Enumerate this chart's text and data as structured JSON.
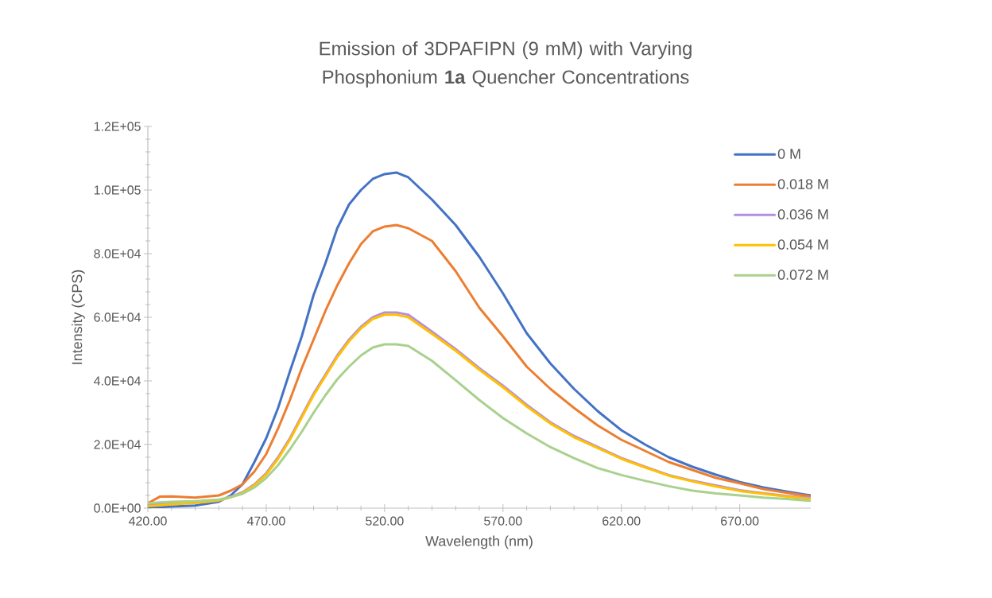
{
  "chart_data": {
    "type": "line",
    "title": "Emission of 3DPAFIPN (9 mM) with Varying Phosphonium **1a** Quencher Concentrations",
    "xlabel": "Wavelength (nm)",
    "ylabel": "Intensity (CPS)",
    "x": [
      420,
      425,
      430,
      440,
      450,
      455,
      460,
      465,
      470,
      475,
      480,
      485,
      490,
      495,
      500,
      505,
      510,
      515,
      520,
      525,
      530,
      540,
      550,
      560,
      570,
      580,
      590,
      600,
      610,
      620,
      630,
      640,
      650,
      660,
      670,
      680,
      690,
      700
    ],
    "series": [
      {
        "name": "0 M",
        "color": "#4472c4",
        "values": [
          200,
          300,
          500,
          800,
          2000,
          4000,
          7500,
          14500,
          22000,
          31500,
          43000,
          54000,
          67000,
          77000,
          88000,
          95500,
          100000,
          103500,
          105000,
          105500,
          104000,
          97000,
          89000,
          79000,
          67500,
          55000,
          45500,
          37500,
          30500,
          24500,
          20000,
          16000,
          13000,
          10500,
          8200,
          6500,
          5200,
          4000
        ]
      },
      {
        "name": "0.018 M",
        "color": "#ed7d31",
        "values": [
          1500,
          3600,
          3700,
          3300,
          4000,
          5500,
          7500,
          11500,
          17000,
          25000,
          34000,
          44000,
          53000,
          62000,
          70000,
          77000,
          83000,
          87000,
          88500,
          89000,
          88000,
          84000,
          74500,
          63000,
          54000,
          44500,
          37500,
          31500,
          26000,
          21500,
          18000,
          14500,
          12000,
          9500,
          7800,
          6000,
          4800,
          3700
        ]
      },
      {
        "name": "0.036 M",
        "color": "#b48fe0",
        "values": [
          1000,
          1200,
          1500,
          1800,
          2500,
          3500,
          5000,
          7500,
          11000,
          16000,
          22000,
          29000,
          36000,
          42000,
          48000,
          53000,
          57000,
          60000,
          61500,
          61500,
          60800,
          55500,
          50000,
          44000,
          38500,
          32500,
          27000,
          22700,
          19200,
          15800,
          13000,
          10400,
          8600,
          7100,
          5600,
          4700,
          3800,
          3200
        ]
      },
      {
        "name": "0.054 M",
        "color": "#ffc000",
        "values": [
          600,
          900,
          1200,
          1600,
          2400,
          3400,
          4800,
          7200,
          10600,
          15500,
          21500,
          28500,
          35500,
          41500,
          47500,
          52500,
          56500,
          59500,
          60800,
          60800,
          60000,
          54800,
          49500,
          43500,
          38000,
          32000,
          26600,
          22300,
          18900,
          15500,
          12800,
          10200,
          8400,
          6800,
          5400,
          4500,
          3600,
          2900
        ]
      },
      {
        "name": "0.072 M",
        "color": "#a9d18e",
        "values": [
          1500,
          1800,
          2000,
          2200,
          2700,
          3500,
          4500,
          6500,
          9500,
          13500,
          18500,
          24000,
          30000,
          35500,
          40500,
          44500,
          48000,
          50500,
          51500,
          51500,
          51000,
          46300,
          40200,
          34000,
          28300,
          23500,
          19200,
          15700,
          12600,
          10400,
          8600,
          6900,
          5500,
          4600,
          4000,
          3300,
          2900,
          2300
        ]
      }
    ],
    "xlim": [
      420,
      700
    ],
    "xticks": [
      {
        "value": 420,
        "label": "420.00"
      },
      {
        "value": 470,
        "label": "470.00"
      },
      {
        "value": 520,
        "label": "520.00"
      },
      {
        "value": 570,
        "label": "570.00"
      },
      {
        "value": 620,
        "label": "620.00"
      },
      {
        "value": 670,
        "label": "670.00"
      }
    ],
    "ylim": [
      0,
      120000
    ],
    "yticks": [
      {
        "value": 0,
        "label": "0.0E+00"
      },
      {
        "value": 20000,
        "label": "2.0E+04"
      },
      {
        "value": 40000,
        "label": "4.0E+04"
      },
      {
        "value": 60000,
        "label": "6.0E+04"
      },
      {
        "value": 80000,
        "label": "8.0E+04"
      },
      {
        "value": 100000,
        "label": "1.0E+05"
      },
      {
        "value": 120000,
        "label": "1.2E+05"
      }
    ],
    "legend": "top right"
  }
}
